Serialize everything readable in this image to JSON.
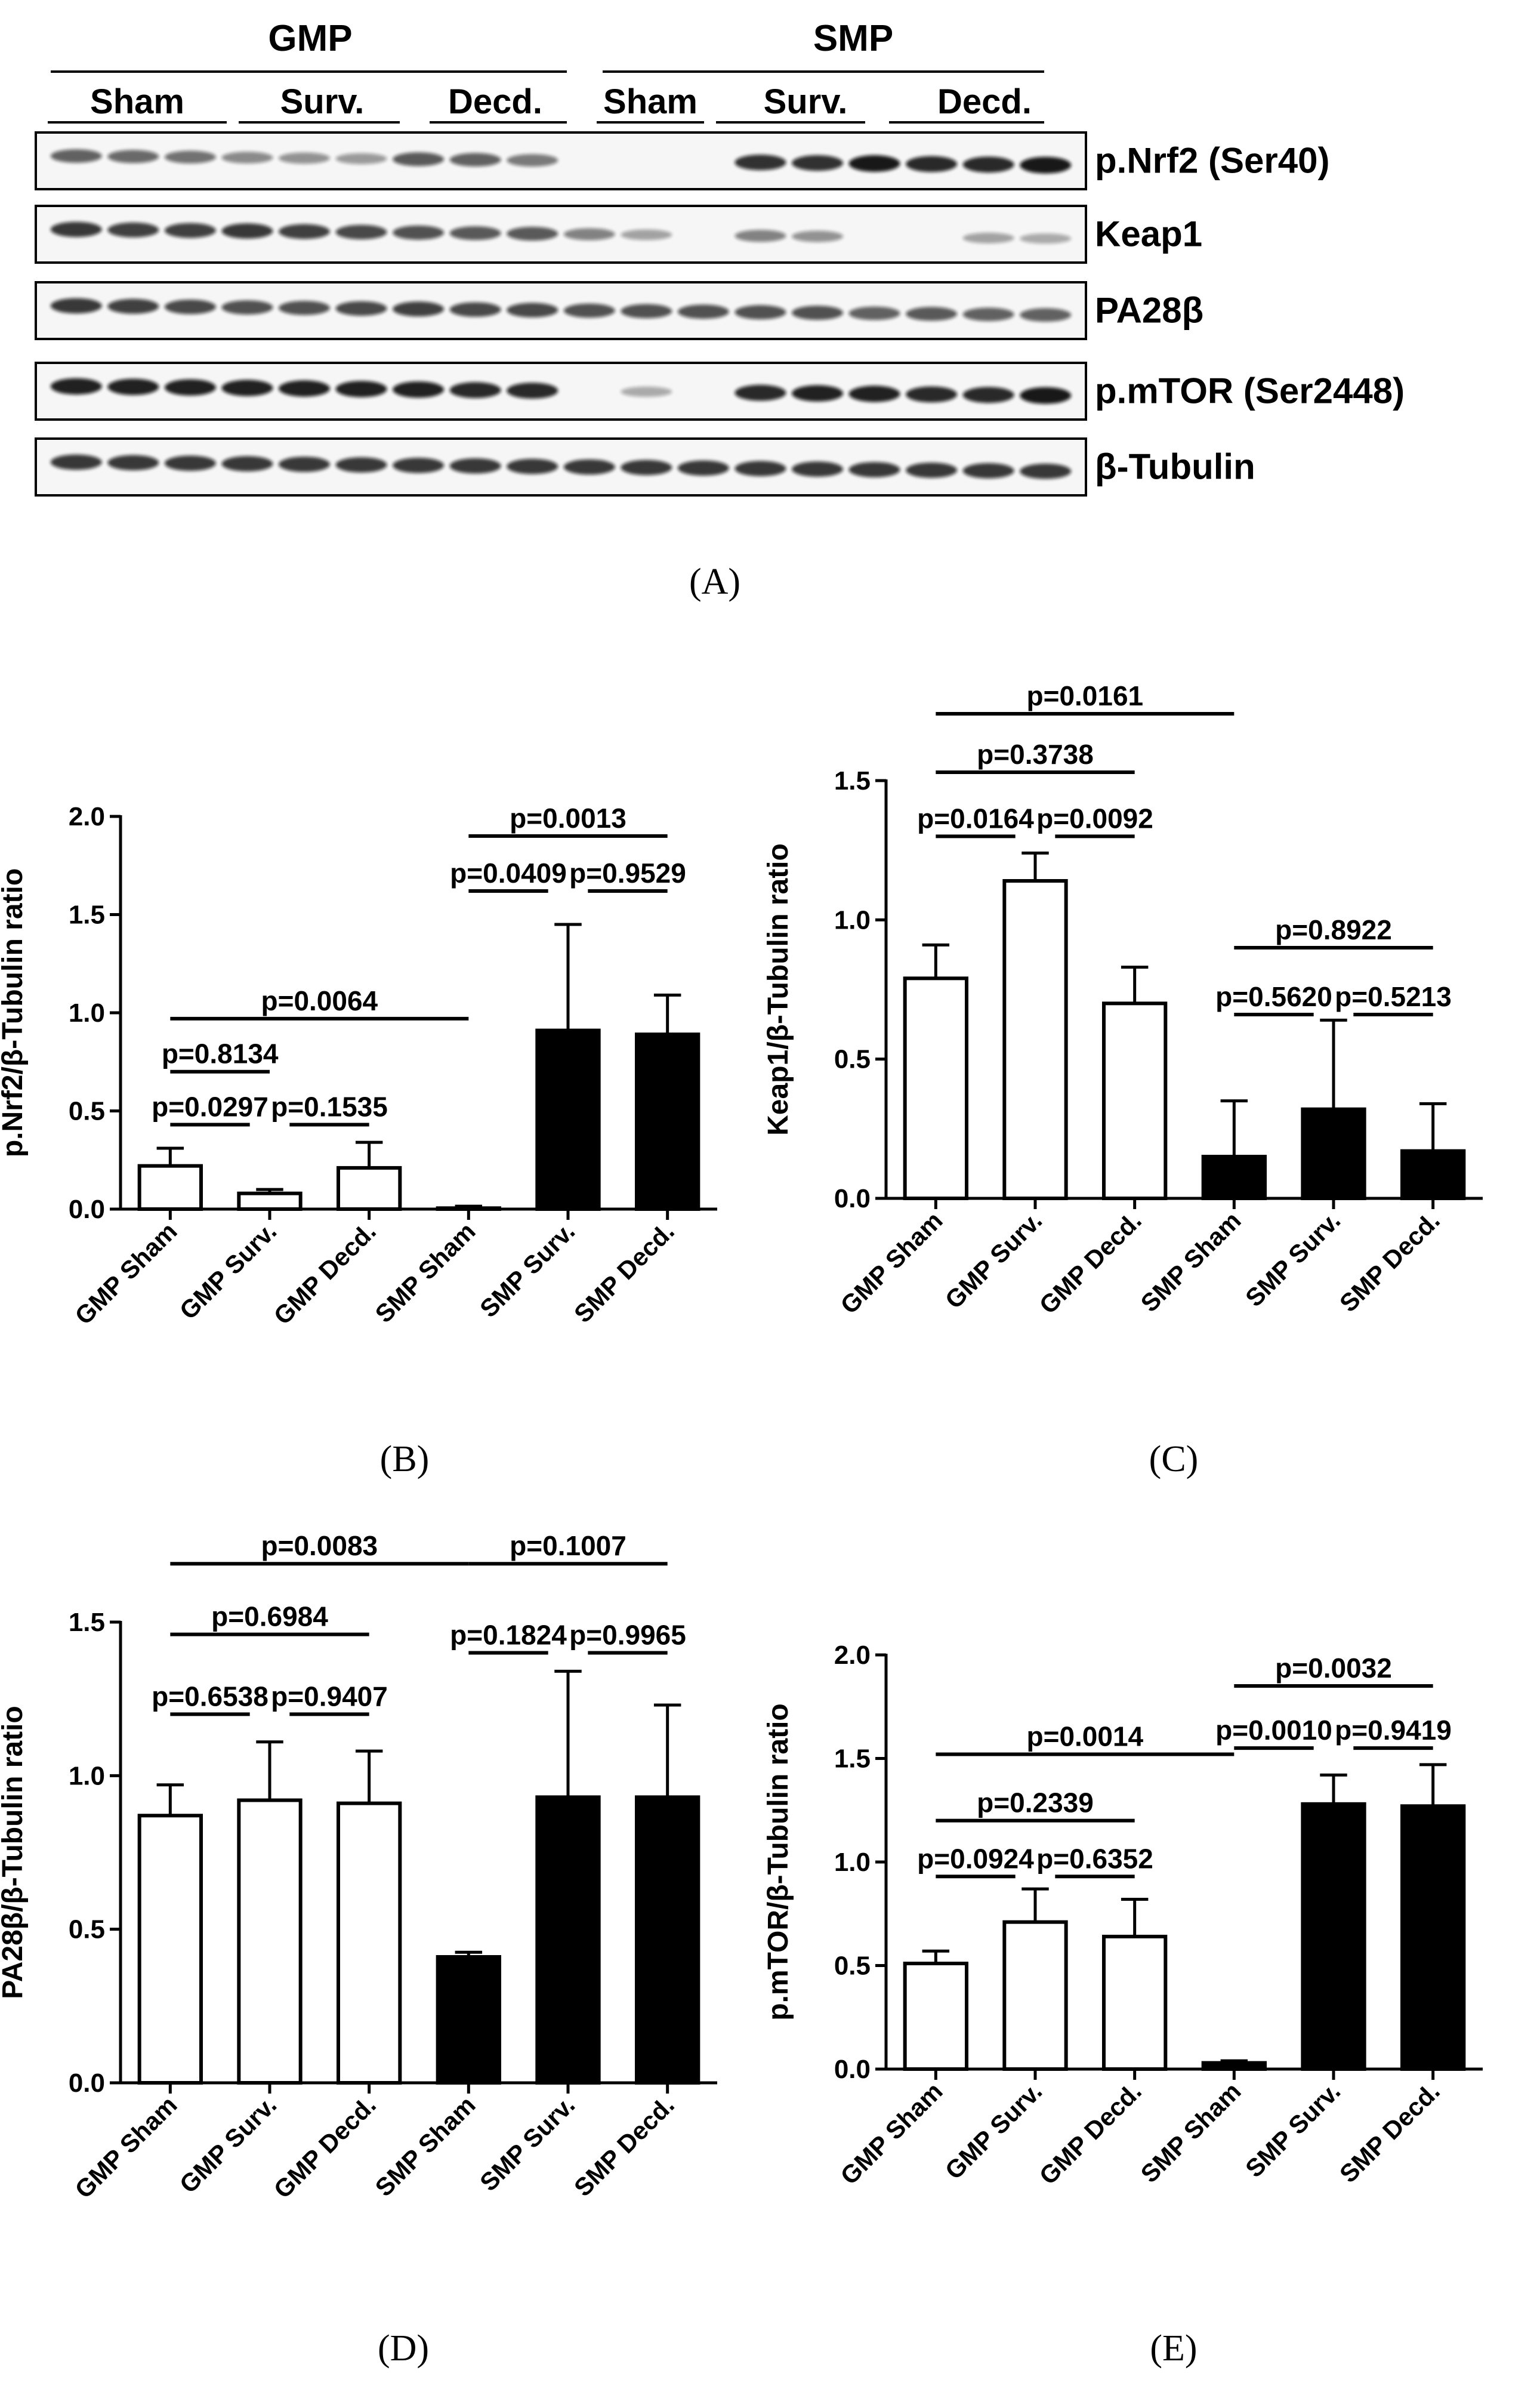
{
  "panel_labels": {
    "A": "(A)",
    "B": "(B)",
    "C": "(C)",
    "D": "(D)",
    "E": "(E)"
  },
  "western_blot": {
    "group_headers": [
      "GMP",
      "SMP"
    ],
    "subgroup_labels": [
      "Sham",
      "Surv.",
      "Decd.",
      "Sham",
      "Surv.",
      "Decd."
    ],
    "lanes_per_subgroup": 3,
    "rows": [
      {
        "label": "p.Nrf2 (Ser40)",
        "intensity": [
          0.55,
          0.5,
          0.45,
          0.3,
          0.25,
          0.2,
          0.6,
          0.55,
          0.4,
          0,
          0,
          0,
          0.85,
          0.85,
          1.0,
          0.9,
          0.9,
          1.0
        ]
      },
      {
        "label": "Keap1",
        "intensity": [
          0.8,
          0.75,
          0.75,
          0.8,
          0.75,
          0.7,
          0.65,
          0.6,
          0.6,
          0.35,
          0.15,
          0,
          0.35,
          0.25,
          0,
          0,
          0.15,
          0.1
        ]
      },
      {
        "label": "PA28β",
        "intensity": [
          0.8,
          0.75,
          0.7,
          0.65,
          0.65,
          0.7,
          0.75,
          0.7,
          0.7,
          0.65,
          0.65,
          0.65,
          0.65,
          0.65,
          0.55,
          0.6,
          0.55,
          0.55
        ]
      },
      {
        "label": "p.mTOR (Ser2448)",
        "intensity": [
          0.95,
          0.95,
          0.95,
          0.95,
          0.95,
          0.95,
          0.95,
          0.9,
          0.9,
          0,
          0.1,
          0,
          0.9,
          0.95,
          0.95,
          0.9,
          0.9,
          1.0
        ]
      },
      {
        "label": "β-Tubulin",
        "intensity": [
          0.8,
          0.8,
          0.8,
          0.8,
          0.8,
          0.8,
          0.8,
          0.8,
          0.8,
          0.8,
          0.8,
          0.8,
          0.8,
          0.8,
          0.8,
          0.8,
          0.8,
          0.8
        ]
      }
    ]
  },
  "chart_data": [
    {
      "panel": "B",
      "type": "bar",
      "categories": [
        "GMP Sham",
        "GMP Surv.",
        "GMP Decd.",
        "SMP Sham",
        "SMP Surv.",
        "SMP Decd."
      ],
      "values": [
        0.22,
        0.08,
        0.21,
        0.005,
        0.91,
        0.89
      ],
      "errors": [
        0.09,
        0.02,
        0.13,
        0.01,
        0.54,
        0.2
      ],
      "fills": [
        "#ffffff",
        "#ffffff",
        "#ffffff",
        "#000000",
        "#000000",
        "#000000"
      ],
      "ylabel": "p.Nrf2/β-Tubulin ratio",
      "ylim": [
        0,
        2.0
      ],
      "yticks": [
        "0.0",
        "0.5",
        "1.0",
        "1.5",
        "2.0"
      ],
      "ytick_values": [
        0,
        0.5,
        1.0,
        1.5,
        2.0
      ],
      "comparisons": [
        {
          "i": 0,
          "j": 3,
          "label": "p=0.0064",
          "level": 0.97
        },
        {
          "i": 0,
          "j": 1,
          "label": "p=0.8134",
          "level": 0.7
        },
        {
          "i": 0,
          "j": 0.8,
          "label": "p=0.0297",
          "level": 0.43
        },
        {
          "i": 1.2,
          "j": 2,
          "label": "p=0.1535",
          "level": 0.43
        },
        {
          "i": 3,
          "j": 5,
          "label": "p=0.0013",
          "level": 1.9
        },
        {
          "i": 3,
          "j": 3.8,
          "label": "p=0.0409",
          "level": 1.62
        },
        {
          "i": 4.2,
          "j": 5,
          "label": "p=0.9529",
          "level": 1.62
        }
      ]
    },
    {
      "panel": "C",
      "type": "bar",
      "categories": [
        "GMP Sham",
        "GMP Surv.",
        "GMP Decd.",
        "SMP Sham",
        "SMP Surv.",
        "SMP Decd."
      ],
      "values": [
        0.79,
        1.14,
        0.7,
        0.15,
        0.32,
        0.17
      ],
      "errors": [
        0.12,
        0.1,
        0.13,
        0.2,
        0.32,
        0.17
      ],
      "fills": [
        "#ffffff",
        "#ffffff",
        "#ffffff",
        "#000000",
        "#000000",
        "#000000"
      ],
      "ylabel": "Keap1/β-Tubulin ratio",
      "ylim": [
        0,
        1.5
      ],
      "yticks": [
        "0.0",
        "0.5",
        "1.0",
        "1.5"
      ],
      "ytick_values": [
        0,
        0.5,
        1.0,
        1.5
      ],
      "comparisons": [
        {
          "i": 0,
          "j": 3,
          "label": "p=0.0161",
          "level": 1.74
        },
        {
          "i": 0,
          "j": 2,
          "label": "p=0.3738",
          "level": 1.53
        },
        {
          "i": 0,
          "j": 0.8,
          "label": "p=0.0164",
          "level": 1.3
        },
        {
          "i": 1.2,
          "j": 2,
          "label": "p=0.0092",
          "level": 1.3
        },
        {
          "i": 3,
          "j": 5,
          "label": "p=0.8922",
          "level": 0.9
        },
        {
          "i": 3,
          "j": 3.8,
          "label": "p=0.5620",
          "level": 0.66
        },
        {
          "i": 4.2,
          "j": 5,
          "label": "p=0.5213",
          "level": 0.66
        }
      ]
    },
    {
      "panel": "D",
      "type": "bar",
      "categories": [
        "GMP Sham",
        "GMP Surv.",
        "GMP Decd.",
        "SMP Sham",
        "SMP Surv.",
        "SMP Decd."
      ],
      "values": [
        0.87,
        0.92,
        0.91,
        0.41,
        0.93,
        0.93
      ],
      "errors": [
        0.1,
        0.19,
        0.17,
        0.015,
        0.41,
        0.3
      ],
      "fills": [
        "#ffffff",
        "#ffffff",
        "#ffffff",
        "#000000",
        "#000000",
        "#000000"
      ],
      "ylabel": "PA28β/β-Tubulin ratio",
      "ylim": [
        0,
        1.5
      ],
      "yticks": [
        "0.0",
        "0.5",
        "1.0",
        "1.5"
      ],
      "ytick_values": [
        0,
        0.5,
        1.0,
        1.5
      ],
      "comparisons": [
        {
          "i": 0,
          "j": 3,
          "label": "p=0.0083",
          "level": 1.69
        },
        {
          "i": 0,
          "j": 2,
          "label": "p=0.6984",
          "level": 1.46
        },
        {
          "i": 0,
          "j": 0.8,
          "label": "p=0.6538",
          "level": 1.2
        },
        {
          "i": 1.2,
          "j": 2,
          "label": "p=0.9407",
          "level": 1.2
        },
        {
          "i": 3,
          "j": 5,
          "label": "p=0.1007",
          "level": 1.69
        },
        {
          "i": 3,
          "j": 3.8,
          "label": "p=0.1824",
          "level": 1.4
        },
        {
          "i": 4.2,
          "j": 5,
          "label": "p=0.9965",
          "level": 1.4
        }
      ]
    },
    {
      "panel": "E",
      "type": "bar",
      "categories": [
        "GMP Sham",
        "GMP Surv.",
        "GMP Decd.",
        "SMP Sham",
        "SMP Surv.",
        "SMP Decd."
      ],
      "values": [
        0.51,
        0.71,
        0.64,
        0.03,
        1.28,
        1.27
      ],
      "errors": [
        0.06,
        0.16,
        0.18,
        0.01,
        0.14,
        0.2
      ],
      "fills": [
        "#ffffff",
        "#ffffff",
        "#ffffff",
        "#000000",
        "#000000",
        "#000000"
      ],
      "ylabel": "p.mTOR/β-Tubulin ratio",
      "ylim": [
        0,
        2.0
      ],
      "yticks": [
        "0.0",
        "0.5",
        "1.0",
        "1.5",
        "2.0"
      ],
      "ytick_values": [
        0,
        0.5,
        1.0,
        1.5,
        2.0
      ],
      "comparisons": [
        {
          "i": 0,
          "j": 3,
          "label": "p=0.0014",
          "level": 1.52
        },
        {
          "i": 0,
          "j": 2,
          "label": "p=0.2339",
          "level": 1.2
        },
        {
          "i": 0,
          "j": 0.8,
          "label": "p=0.0924",
          "level": 0.93
        },
        {
          "i": 1.2,
          "j": 2,
          "label": "p=0.6352",
          "level": 0.93
        },
        {
          "i": 3,
          "j": 5,
          "label": "p=0.0032",
          "level": 1.85
        },
        {
          "i": 3,
          "j": 3.8,
          "label": "p=0.0010",
          "level": 1.55
        },
        {
          "i": 4.2,
          "j": 5,
          "label": "p=0.9419",
          "level": 1.55
        }
      ]
    }
  ]
}
